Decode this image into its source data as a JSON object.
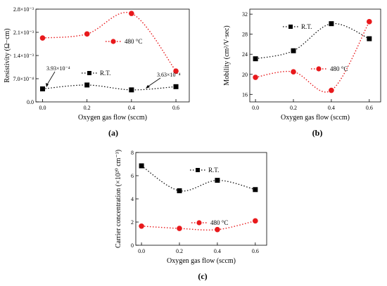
{
  "chart_data": [
    {
      "type": "scatter",
      "panel_label": "(a)",
      "xlabel": "Oxygen gas flow (sccm)",
      "ylabel": "Resistivity (Ω−cm)",
      "xlim": [
        -0.03,
        0.66
      ],
      "ylim": [
        0,
        0.0028
      ],
      "xticks": [
        0.0,
        0.2,
        0.4,
        0.6
      ],
      "xtick_labels": [
        "0.0",
        "0.2",
        "0.4",
        "0.6"
      ],
      "yticks": [
        0,
        0.0007,
        0.0014,
        0.0021,
        0.0028
      ],
      "ytick_labels": [
        "0.0",
        "7.0×10⁻⁴",
        "1.4×10⁻³",
        "2.1×10⁻³",
        "2.8×10⁻³"
      ],
      "x": [
        0.0,
        0.2,
        0.4,
        0.6
      ],
      "series": [
        {
          "name": "R.T.",
          "values": [
            0.000393,
            0.00051,
            0.000363,
            0.00046
          ],
          "color": "#000000",
          "marker": "square"
        },
        {
          "name": "480 °C",
          "values": [
            0.00193,
            0.00205,
            0.00267,
            0.00093
          ],
          "color": "#e8191c",
          "marker": "circle"
        }
      ],
      "annotations": [
        "3.93×10⁻⁴",
        "3.63×10⁻⁴"
      ]
    },
    {
      "type": "scatter",
      "panel_label": "(b)",
      "xlabel": "Oxygen gas flow (sccm)",
      "ylabel": "Mobility (cm²/V·sec)",
      "xlim": [
        -0.03,
        0.66
      ],
      "ylim": [
        14.5,
        33
      ],
      "xticks": [
        0.0,
        0.2,
        0.4,
        0.6
      ],
      "xtick_labels": [
        "0.0",
        "0.2",
        "0.4",
        "0.6"
      ],
      "yticks": [
        16,
        20,
        24,
        28,
        32
      ],
      "ytick_labels": [
        "16",
        "20",
        "24",
        "28",
        "32"
      ],
      "x": [
        0.0,
        0.2,
        0.4,
        0.6
      ],
      "series": [
        {
          "name": "R.T.",
          "values": [
            23.1,
            24.7,
            30.1,
            27.1
          ],
          "color": "#000000",
          "marker": "square"
        },
        {
          "name": "480 °C",
          "values": [
            19.4,
            20.5,
            16.8,
            30.5
          ],
          "color": "#e8191c",
          "marker": "circle"
        }
      ]
    },
    {
      "type": "scatter",
      "panel_label": "(c)",
      "xlabel": "Oxygen gas flow (sccm)",
      "ylabel": "Carrier concentration (×10²⁰ cm⁻³)",
      "xlim": [
        -0.03,
        0.66
      ],
      "ylim": [
        0,
        8
      ],
      "xticks": [
        0.0,
        0.2,
        0.4,
        0.6
      ],
      "xtick_labels": [
        "0.0",
        "0.2",
        "0.4",
        "0.6"
      ],
      "yticks": [
        0,
        2,
        4,
        6,
        8
      ],
      "ytick_labels": [
        "0",
        "2",
        "4",
        "6",
        "8"
      ],
      "x": [
        0.0,
        0.2,
        0.4,
        0.6
      ],
      "series": [
        {
          "name": "R.T.",
          "values": [
            6.85,
            4.7,
            5.6,
            4.8
          ],
          "color": "#000000",
          "marker": "square"
        },
        {
          "name": "480 °C",
          "values": [
            1.65,
            1.45,
            1.35,
            2.1
          ],
          "color": "#e8191c",
          "marker": "circle"
        }
      ]
    }
  ]
}
